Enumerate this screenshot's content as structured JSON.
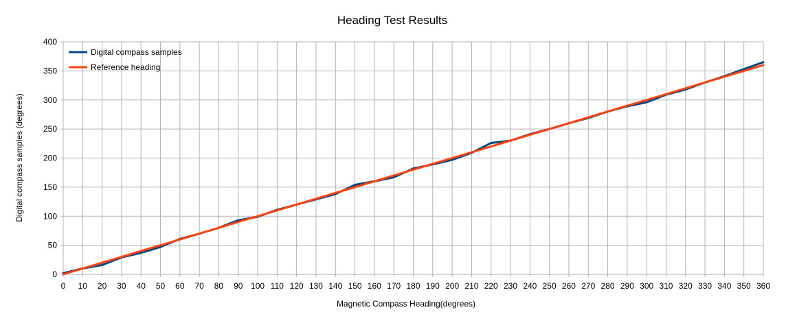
{
  "chart_data": {
    "type": "line",
    "title": "Heading Test Results",
    "xlabel": "Magnetic Compass Heading(degrees)",
    "ylabel": "Digital compass samples (degrees)",
    "x": [
      0,
      10,
      20,
      30,
      40,
      50,
      60,
      70,
      80,
      90,
      100,
      110,
      120,
      130,
      140,
      150,
      160,
      170,
      180,
      190,
      200,
      210,
      220,
      230,
      240,
      250,
      260,
      270,
      280,
      290,
      300,
      310,
      320,
      330,
      340,
      350,
      360
    ],
    "xlim": [
      0,
      360
    ],
    "ylim": [
      0,
      400
    ],
    "xticks": [
      "0",
      "10",
      "20",
      "30",
      "40",
      "50",
      "60",
      "70",
      "80",
      "90",
      "100",
      "110",
      "120",
      "130",
      "140",
      "150",
      "160",
      "170",
      "180",
      "190",
      "200",
      "210",
      "220",
      "230",
      "240",
      "250",
      "260",
      "270",
      "280",
      "290",
      "300",
      "310",
      "320",
      "330",
      "340",
      "350",
      "360"
    ],
    "yticks": [
      "0",
      "50",
      "100",
      "150",
      "200",
      "250",
      "300",
      "350",
      "400"
    ],
    "grid": true,
    "legend_position": "top-left",
    "series": [
      {
        "name": "Digital compass samples",
        "color": "#004586",
        "values": [
          2,
          10,
          16,
          29,
          37,
          47,
          61,
          70,
          80,
          93,
          99,
          111,
          120,
          129,
          138,
          154,
          160,
          167,
          182,
          189,
          197,
          209,
          226,
          230,
          241,
          250,
          260,
          269,
          280,
          289,
          296,
          309,
          318,
          330,
          341,
          353,
          365
        ]
      },
      {
        "name": "Reference heading",
        "color": "#ff420e",
        "values": [
          0,
          10,
          20,
          30,
          40,
          50,
          60,
          70,
          80,
          90,
          100,
          110,
          120,
          130,
          140,
          150,
          160,
          170,
          180,
          190,
          200,
          210,
          220,
          230,
          240,
          250,
          260,
          270,
          280,
          290,
          300,
          310,
          320,
          330,
          340,
          350,
          360
        ]
      }
    ]
  }
}
